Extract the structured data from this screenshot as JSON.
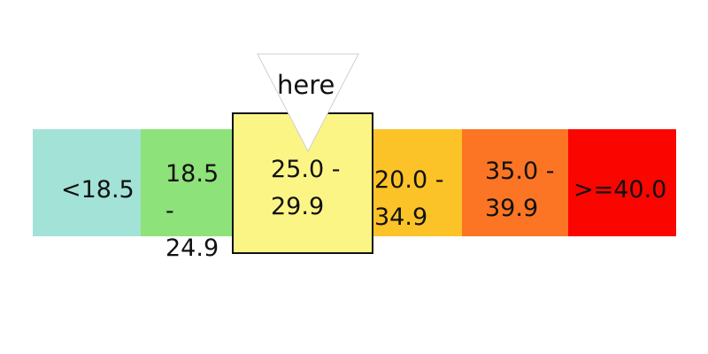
{
  "scale": {
    "segments": [
      {
        "line1": "<18.5",
        "line2": "",
        "color": "#a3e2d7"
      },
      {
        "line1": "18.5 -",
        "line2": "24.9",
        "color": "#8de27a"
      },
      {
        "line1": "25.0 -",
        "line2": "29.9",
        "color": "#fbf585"
      },
      {
        "line1": "20.0 -",
        "line2": "34.9",
        "color": "#fcc328"
      },
      {
        "line1": "35.0 -",
        "line2": "39.9",
        "color": "#fb7524"
      },
      {
        "line1": ">=40.0",
        "line2": "",
        "color": "#fb0500"
      }
    ],
    "highlighted_index": 2
  },
  "pointer": {
    "label": "here"
  }
}
